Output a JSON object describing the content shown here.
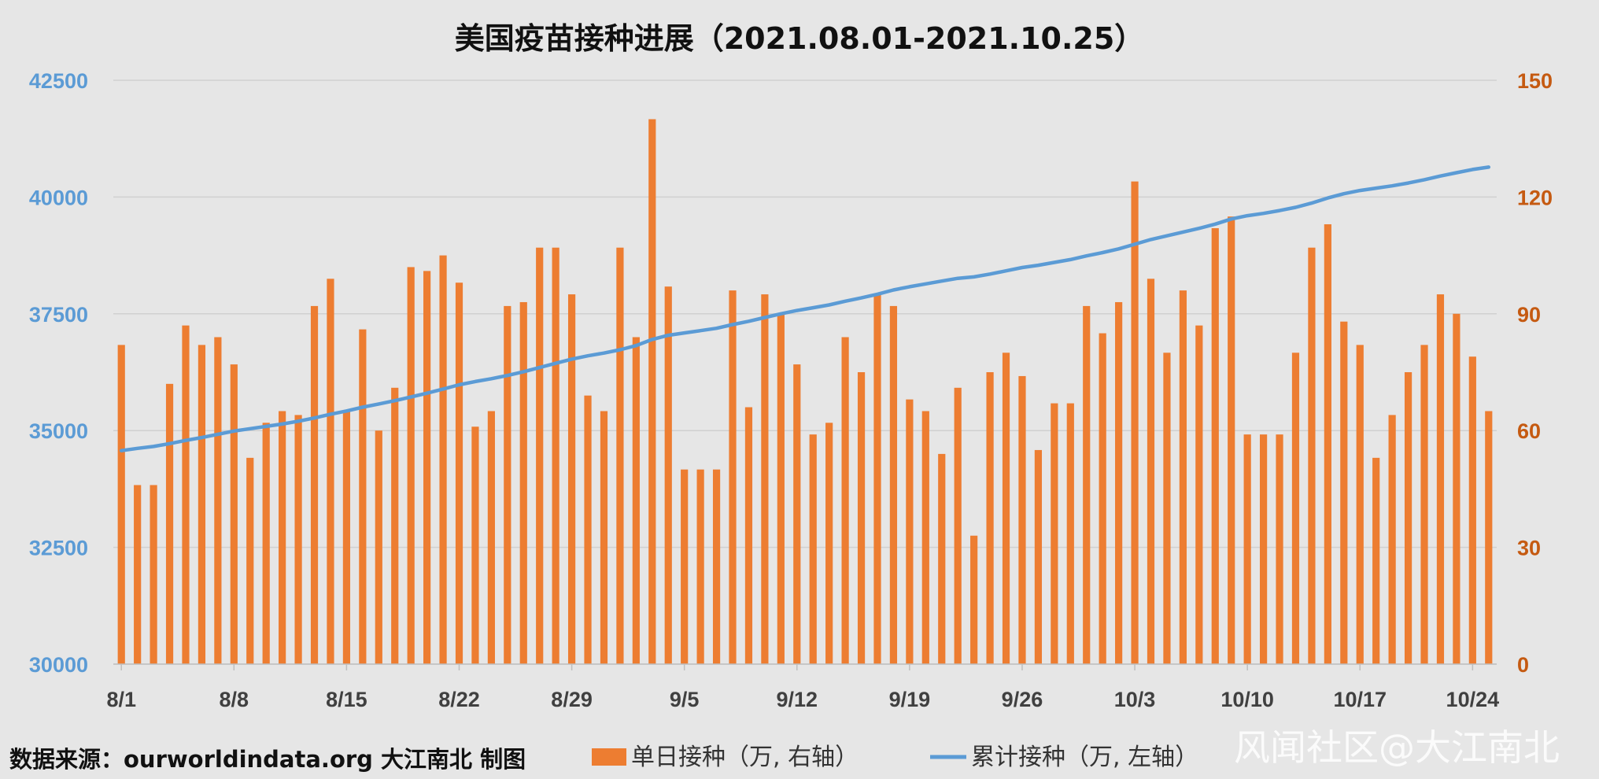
{
  "chart_data": {
    "type": "bar",
    "title": "美国疫苗接种进展（2021.08.01-2021.10.25）",
    "x_start": "8/1",
    "x_end": "10/25",
    "x_ticks": [
      "8/1",
      "8/8",
      "8/15",
      "8/22",
      "8/29",
      "9/5",
      "9/12",
      "9/19",
      "9/26",
      "10/3",
      "10/10",
      "10/17",
      "10/24"
    ],
    "y_left": {
      "min": 30000,
      "max": 42500,
      "ticks": [
        30000,
        32500,
        35000,
        37500,
        40000,
        42500
      ],
      "color": "#5b9bd5"
    },
    "y_right": {
      "min": 0,
      "max": 150,
      "ticks": [
        0,
        30,
        60,
        90,
        120,
        150
      ],
      "color": "#c55a11"
    },
    "grid": true,
    "legend_position": "bottom",
    "series": [
      {
        "name": "单日接种（万, 右轴）",
        "type": "bar",
        "axis": "right",
        "color": "#ed7d31",
        "values": [
          82,
          46,
          46,
          72,
          87,
          82,
          84,
          77,
          53,
          62,
          65,
          64,
          92,
          99,
          65,
          86,
          60,
          71,
          102,
          101,
          105,
          98,
          61,
          65,
          92,
          93,
          107,
          107,
          95,
          69,
          65,
          107,
          84,
          140,
          97,
          50,
          50,
          50,
          96,
          66,
          95,
          90,
          77,
          59,
          62,
          84,
          75,
          95,
          92,
          68,
          65,
          54,
          71,
          33,
          75,
          80,
          74,
          55,
          67,
          67,
          92,
          85,
          93,
          124,
          99,
          80,
          96,
          87,
          112,
          115,
          59,
          59,
          59,
          80,
          107,
          113,
          88,
          82,
          53,
          64,
          75,
          82,
          95,
          90,
          79,
          65
        ]
      },
      {
        "name": "累计接种（万, 左轴）",
        "type": "line",
        "axis": "left",
        "color": "#5b9bd5",
        "values": [
          34570,
          34620,
          34660,
          34720,
          34790,
          34850,
          34920,
          34990,
          35040,
          35090,
          35140,
          35200,
          35270,
          35350,
          35420,
          35500,
          35570,
          35640,
          35720,
          35800,
          35890,
          35980,
          36050,
          36110,
          36180,
          36260,
          36350,
          36440,
          36530,
          36600,
          36660,
          36730,
          36820,
          36950,
          37040,
          37090,
          37140,
          37190,
          37270,
          37340,
          37420,
          37500,
          37570,
          37630,
          37690,
          37770,
          37840,
          37920,
          38010,
          38080,
          38140,
          38200,
          38260,
          38290,
          38350,
          38420,
          38490,
          38540,
          38600,
          38660,
          38740,
          38810,
          38890,
          38990,
          39090,
          39170,
          39250,
          39330,
          39420,
          39530,
          39600,
          39650,
          39710,
          39780,
          39870,
          39980,
          40070,
          40140,
          40190,
          40240,
          40300,
          40370,
          40450,
          40520,
          40590,
          40640
        ]
      }
    ]
  },
  "footer": {
    "source": "数据来源：ourworldindata.org 大江南北 制图"
  },
  "watermark": "风闻社区@大江南北"
}
